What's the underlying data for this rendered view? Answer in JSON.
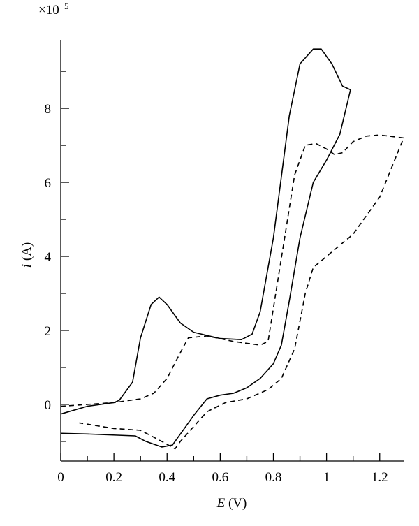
{
  "chart_data": {
    "type": "line",
    "y_multiplier": "×10",
    "y_exponent": "−5",
    "xlabel_symbol": "E",
    "xlabel_unit": "(V)",
    "ylabel_symbol": "i",
    "ylabel_unit": "(A)",
    "xlim": [
      0,
      1.29
    ],
    "xticks": [
      0,
      0.2,
      0.4,
      0.6,
      0.8,
      1,
      1.2
    ],
    "xminor": [
      0.1,
      0.3,
      0.5,
      0.7,
      0.9,
      1.1
    ],
    "ylim": [
      -1.53,
      9.85
    ],
    "yticks": [
      0,
      2,
      4,
      6,
      8
    ],
    "yminor": [
      -1,
      1,
      3,
      5,
      7,
      9
    ],
    "grid": false,
    "series": [
      {
        "color": "#000000",
        "dashed": false,
        "x": [
          0,
          0.1,
          0.2,
          0.22,
          0.27,
          0.3,
          0.34,
          0.37,
          0.4,
          0.45,
          0.5,
          0.6,
          0.68,
          0.72,
          0.75,
          0.8,
          0.86,
          0.9,
          0.95,
          0.98,
          1.02,
          1.06,
          1.09,
          1.05,
          1.0,
          0.95,
          0.9,
          0.86,
          0.83,
          0.8,
          0.75,
          0.7,
          0.65,
          0.6,
          0.55,
          0.5,
          0.45,
          0.42,
          0.38,
          0.32,
          0.28,
          0.1,
          0
        ],
        "values": [
          -0.26,
          -0.05,
          0.05,
          0.11,
          0.6,
          1.8,
          2.7,
          2.9,
          2.7,
          2.2,
          1.95,
          1.78,
          1.75,
          1.9,
          2.5,
          4.5,
          7.8,
          9.2,
          9.6,
          9.6,
          9.2,
          8.6,
          8.5,
          7.3,
          6.6,
          6.0,
          4.5,
          2.8,
          1.6,
          1.1,
          0.7,
          0.45,
          0.3,
          0.25,
          0.15,
          -0.3,
          -0.8,
          -1.1,
          -1.15,
          -1.0,
          -0.85,
          -0.8,
          -0.78
        ]
      },
      {
        "color": "#000000",
        "dashed": true,
        "x": [
          0,
          0.2,
          0.3,
          0.35,
          0.4,
          0.45,
          0.48,
          0.55,
          0.65,
          0.75,
          0.78,
          0.82,
          0.88,
          0.92,
          0.96,
          1.0,
          1.03,
          1.06,
          1.1,
          1.15,
          1.2,
          1.29,
          1.2,
          1.1,
          1.05,
          1.0,
          0.95,
          0.92,
          0.88,
          0.83,
          0.78,
          0.7,
          0.62,
          0.55,
          0.5,
          0.45,
          0.43,
          0.38,
          0.3,
          0.2,
          0.07
        ],
        "values": [
          -0.05,
          0.05,
          0.15,
          0.3,
          0.7,
          1.4,
          1.8,
          1.85,
          1.7,
          1.6,
          1.7,
          3.5,
          6.2,
          7.0,
          7.05,
          6.9,
          6.75,
          6.8,
          7.1,
          7.25,
          7.28,
          7.2,
          5.6,
          4.6,
          4.3,
          4.0,
          3.7,
          3.0,
          1.5,
          0.7,
          0.4,
          0.15,
          0.05,
          -0.2,
          -0.6,
          -1.0,
          -1.2,
          -1.0,
          -0.7,
          -0.65,
          -0.5
        ]
      }
    ]
  }
}
